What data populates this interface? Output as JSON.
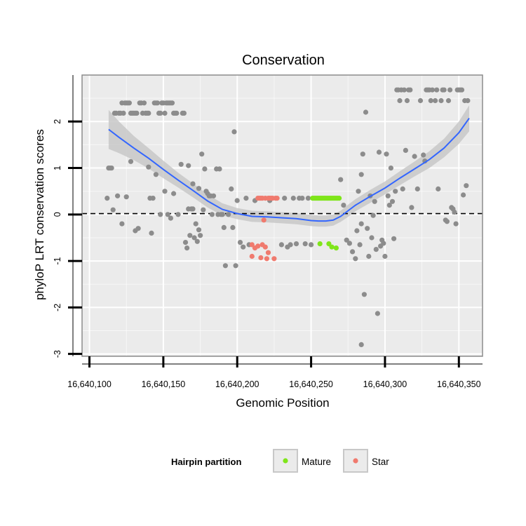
{
  "chart_data": {
    "type": "scatter",
    "title": "Conservation",
    "xlabel": "Genomic Position",
    "ylabel": "phyloP LRT conservation scores",
    "xlim": [
      16640095,
      16640366
    ],
    "ylim": [
      -3.05,
      3.0
    ],
    "x_ticks": [
      16640100,
      16640150,
      16640200,
      16640250,
      16640300,
      16640350
    ],
    "x_tick_labels": [
      "16,640,100",
      "16,640,150",
      "16,640,200",
      "16,640,250",
      "16,640,300",
      "16,640,350"
    ],
    "y_ticks": [
      -3,
      -2,
      -1,
      0,
      1,
      2
    ],
    "y_tick_labels": [
      "-3",
      "-2",
      "-1",
      "0",
      "1",
      "2"
    ],
    "reference_line": {
      "y": 0.02,
      "style": "dashed"
    },
    "legend": {
      "title": "Hairpin partition",
      "position": "bottom",
      "entries": [
        {
          "name": "Mature",
          "color": "#7fe51a"
        },
        {
          "name": "Star",
          "color": "#f07a6e"
        }
      ]
    },
    "colors": {
      "background": "#ebebeb",
      "point_other": "#8c8c8c",
      "smooth_line": "#3366ff",
      "ribbon": "#c8c8c8",
      "grid": "#ffffff"
    },
    "series": [
      {
        "name": "Other",
        "points": [
          [
            16640112,
            0.35
          ],
          [
            16640113,
            1.0
          ],
          [
            16640114,
            1.0
          ],
          [
            16640115,
            1.0
          ],
          [
            16640116,
            0.1
          ],
          [
            16640117,
            2.18
          ],
          [
            16640118,
            2.18
          ],
          [
            16640119,
            0.4
          ],
          [
            16640120,
            2.18
          ],
          [
            16640121,
            2.18
          ],
          [
            16640122,
            2.4
          ],
          [
            16640123,
            2.18
          ],
          [
            16640124,
            2.4
          ],
          [
            16640125,
            2.4
          ],
          [
            16640126,
            2.4
          ],
          [
            16640127,
            2.4
          ],
          [
            16640122,
            -0.2
          ],
          [
            16640125,
            0.38
          ],
          [
            16640128,
            1.14
          ],
          [
            16640128,
            2.18
          ],
          [
            16640129,
            2.18
          ],
          [
            16640130,
            2.18
          ],
          [
            16640131,
            2.18
          ],
          [
            16640131,
            -0.35
          ],
          [
            16640133,
            -0.3
          ],
          [
            16640132,
            2.18
          ],
          [
            16640134,
            2.4
          ],
          [
            16640135,
            2.4
          ],
          [
            16640136,
            2.18
          ],
          [
            16640137,
            2.4
          ],
          [
            16640138,
            2.18
          ],
          [
            16640139,
            2.18
          ],
          [
            16640140,
            1.02
          ],
          [
            16640140,
            2.18
          ],
          [
            16640141,
            0.35
          ],
          [
            16640142,
            -0.4
          ],
          [
            16640143,
            0.35
          ],
          [
            16640144,
            2.4
          ],
          [
            16640145,
            2.4
          ],
          [
            16640145,
            0.86
          ],
          [
            16640146,
            2.4
          ],
          [
            16640147,
            2.18
          ],
          [
            16640148,
            2.18
          ],
          [
            16640148,
            0.0
          ],
          [
            16640149,
            2.4
          ],
          [
            16640150,
            2.4
          ],
          [
            16640151,
            2.18
          ],
          [
            16640151,
            0.5
          ],
          [
            16640152,
            2.4
          ],
          [
            16640153,
            2.4
          ],
          [
            16640153,
            0.0
          ],
          [
            16640154,
            2.4
          ],
          [
            16640155,
            2.4
          ],
          [
            16640155,
            -0.08
          ],
          [
            16640156,
            2.4
          ],
          [
            16640157,
            2.18
          ],
          [
            16640157,
            0.45
          ],
          [
            16640158,
            2.18
          ],
          [
            16640159,
            2.18
          ],
          [
            16640160,
            0.0
          ],
          [
            16640162,
            1.08
          ],
          [
            16640163,
            2.18
          ],
          [
            16640164,
            2.18
          ],
          [
            16640165,
            -0.6
          ],
          [
            16640166,
            -0.72
          ],
          [
            16640167,
            0.12
          ],
          [
            16640167,
            1.05
          ],
          [
            16640168,
            -0.45
          ],
          [
            16640169,
            0.12
          ],
          [
            16640170,
            0.12
          ],
          [
            16640170,
            0.66
          ],
          [
            16640171,
            -0.5
          ],
          [
            16640172,
            -0.2
          ],
          [
            16640173,
            -0.58
          ],
          [
            16640174,
            0.56
          ],
          [
            16640174,
            -0.33
          ],
          [
            16640175,
            -0.45
          ],
          [
            16640176,
            1.3
          ],
          [
            16640177,
            0.1
          ],
          [
            16640178,
            0.98
          ],
          [
            16640179,
            0.5
          ],
          [
            16640180,
            0.45
          ],
          [
            16640181,
            0.4
          ],
          [
            16640182,
            0.4
          ],
          [
            16640183,
            0.0
          ],
          [
            16640184,
            0.4
          ],
          [
            16640186,
            0.98
          ],
          [
            16640187,
            0.0
          ],
          [
            16640188,
            0.98
          ],
          [
            16640189,
            0.0
          ],
          [
            16640190,
            0.0
          ],
          [
            16640191,
            -0.28
          ],
          [
            16640192,
            -1.1
          ],
          [
            16640194,
            0.0
          ],
          [
            16640196,
            0.55
          ],
          [
            16640197,
            -0.28
          ],
          [
            16640198,
            1.78
          ],
          [
            16640199,
            -1.1
          ],
          [
            16640200,
            0.3
          ],
          [
            16640202,
            -0.6
          ],
          [
            16640204,
            -0.7
          ],
          [
            16640206,
            0.35
          ],
          [
            16640208,
            -0.65
          ],
          [
            16640212,
            0.3
          ],
          [
            16640222,
            0.3
          ],
          [
            16640230,
            -0.65
          ],
          [
            16640232,
            0.35
          ],
          [
            16640234,
            -0.7
          ],
          [
            16640236,
            -0.65
          ],
          [
            16640238,
            0.35
          ],
          [
            16640240,
            -0.63
          ],
          [
            16640242,
            0.35
          ],
          [
            16640244,
            0.35
          ],
          [
            16640246,
            -0.63
          ],
          [
            16640248,
            0.35
          ],
          [
            16640250,
            -0.65
          ],
          [
            16640270,
            0.75
          ],
          [
            16640272,
            0.2
          ],
          [
            16640274,
            -0.55
          ],
          [
            16640276,
            -0.62
          ],
          [
            16640278,
            -0.8
          ],
          [
            16640280,
            -0.95
          ],
          [
            16640281,
            -0.35
          ],
          [
            16640282,
            0.5
          ],
          [
            16640283,
            -0.65
          ],
          [
            16640284,
            0.86
          ],
          [
            16640284,
            -0.2
          ],
          [
            16640285,
            1.3
          ],
          [
            16640286,
            -1.72
          ],
          [
            16640287,
            2.2
          ],
          [
            16640288,
            -0.3
          ],
          [
            16640289,
            -0.9
          ],
          [
            16640290,
            0.4
          ],
          [
            16640291,
            -0.5
          ],
          [
            16640292,
            -0.02
          ],
          [
            16640293,
            0.28
          ],
          [
            16640294,
            -0.75
          ],
          [
            16640295,
            -2.13
          ],
          [
            16640296,
            1.34
          ],
          [
            16640297,
            -0.68
          ],
          [
            16640298,
            -0.55
          ],
          [
            16640299,
            -0.62
          ],
          [
            16640300,
            -0.9
          ],
          [
            16640301,
            1.3
          ],
          [
            16640302,
            0.4
          ],
          [
            16640303,
            0.2
          ],
          [
            16640304,
            1.0
          ],
          [
            16640305,
            0.28
          ],
          [
            16640306,
            -0.52
          ],
          [
            16640307,
            0.5
          ],
          [
            16640308,
            2.68
          ],
          [
            16640309,
            2.68
          ],
          [
            16640310,
            2.45
          ],
          [
            16640311,
            2.68
          ],
          [
            16640312,
            0.55
          ],
          [
            16640313,
            2.68
          ],
          [
            16640314,
            1.38
          ],
          [
            16640315,
            2.45
          ],
          [
            16640316,
            2.68
          ],
          [
            16640317,
            2.68
          ],
          [
            16640318,
            0.15
          ],
          [
            16640320,
            1.25
          ],
          [
            16640322,
            0.55
          ],
          [
            16640324,
            2.45
          ],
          [
            16640326,
            1.28
          ],
          [
            16640327,
            1.15
          ],
          [
            16640328,
            2.68
          ],
          [
            16640329,
            2.68
          ],
          [
            16640330,
            2.68
          ],
          [
            16640331,
            2.45
          ],
          [
            16640332,
            2.68
          ],
          [
            16640334,
            2.45
          ],
          [
            16640335,
            2.68
          ],
          [
            16640336,
            0.55
          ],
          [
            16640338,
            2.45
          ],
          [
            16640339,
            2.68
          ],
          [
            16640340,
            2.68
          ],
          [
            16640341,
            -0.12
          ],
          [
            16640342,
            -0.15
          ],
          [
            16640343,
            2.45
          ],
          [
            16640344,
            2.68
          ],
          [
            16640345,
            0.15
          ],
          [
            16640346,
            0.12
          ],
          [
            16640347,
            0.05
          ],
          [
            16640348,
            -0.2
          ],
          [
            16640349,
            2.68
          ],
          [
            16640350,
            2.68
          ],
          [
            16640351,
            2.68
          ],
          [
            16640352,
            2.68
          ],
          [
            16640353,
            0.42
          ],
          [
            16640354,
            2.45
          ],
          [
            16640355,
            0.62
          ],
          [
            16640356,
            2.45
          ],
          [
            16640284,
            -2.8
          ]
        ]
      },
      {
        "name": "Mature",
        "points": [
          [
            16640251,
            0.35
          ],
          [
            16640252,
            0.35
          ],
          [
            16640253,
            0.35
          ],
          [
            16640254,
            0.35
          ],
          [
            16640255,
            0.35
          ],
          [
            16640256,
            0.35
          ],
          [
            16640257,
            0.35
          ],
          [
            16640258,
            0.35
          ],
          [
            16640259,
            0.35
          ],
          [
            16640260,
            0.35
          ],
          [
            16640261,
            0.35
          ],
          [
            16640262,
            0.35
          ],
          [
            16640263,
            0.35
          ],
          [
            16640264,
            0.35
          ],
          [
            16640265,
            0.35
          ],
          [
            16640266,
            0.35
          ],
          [
            16640267,
            0.35
          ],
          [
            16640268,
            0.35
          ],
          [
            16640269,
            0.35
          ],
          [
            16640256,
            -0.63
          ],
          [
            16640262,
            -0.63
          ],
          [
            16640264,
            -0.7
          ],
          [
            16640267,
            -0.72
          ]
        ]
      },
      {
        "name": "Star",
        "points": [
          [
            16640214,
            0.35
          ],
          [
            16640215,
            0.35
          ],
          [
            16640216,
            0.35
          ],
          [
            16640217,
            0.35
          ],
          [
            16640219,
            0.35
          ],
          [
            16640221,
            0.35
          ],
          [
            16640222,
            0.35
          ],
          [
            16640223,
            0.35
          ],
          [
            16640224,
            0.35
          ],
          [
            16640226,
            0.35
          ],
          [
            16640227,
            0.35
          ],
          [
            16640210,
            -0.65
          ],
          [
            16640212,
            -0.72
          ],
          [
            16640214,
            -0.68
          ],
          [
            16640217,
            -0.65
          ],
          [
            16640219,
            -0.7
          ],
          [
            16640221,
            -0.82
          ],
          [
            16640210,
            -0.9
          ],
          [
            16640216,
            -0.93
          ],
          [
            16640220,
            -0.95
          ],
          [
            16640225,
            -0.95
          ],
          [
            16640218,
            -0.12
          ]
        ]
      }
    ],
    "smooth": {
      "x": [
        16640113,
        16640120,
        16640130,
        16640140,
        16640150,
        16640160,
        16640170,
        16640180,
        16640190,
        16640200,
        16640210,
        16640220,
        16640230,
        16640240,
        16640250,
        16640255,
        16640260,
        16640265,
        16640270,
        16640275,
        16640280,
        16640290,
        16640300,
        16640310,
        16640320,
        16640330,
        16640340,
        16640350,
        16640357
      ],
      "y": [
        1.83,
        1.66,
        1.43,
        1.21,
        0.97,
        0.74,
        0.52,
        0.29,
        0.11,
        0.02,
        -0.04,
        -0.05,
        -0.07,
        -0.09,
        -0.13,
        -0.14,
        -0.14,
        -0.12,
        -0.04,
        0.08,
        0.2,
        0.39,
        0.57,
        0.78,
        0.98,
        1.18,
        1.43,
        1.76,
        2.07
      ],
      "se": [
        0.42,
        0.34,
        0.26,
        0.22,
        0.19,
        0.16,
        0.15,
        0.14,
        0.13,
        0.12,
        0.12,
        0.12,
        0.12,
        0.12,
        0.12,
        0.12,
        0.12,
        0.12,
        0.12,
        0.13,
        0.13,
        0.14,
        0.14,
        0.15,
        0.16,
        0.18,
        0.2,
        0.24,
        0.28
      ]
    }
  }
}
